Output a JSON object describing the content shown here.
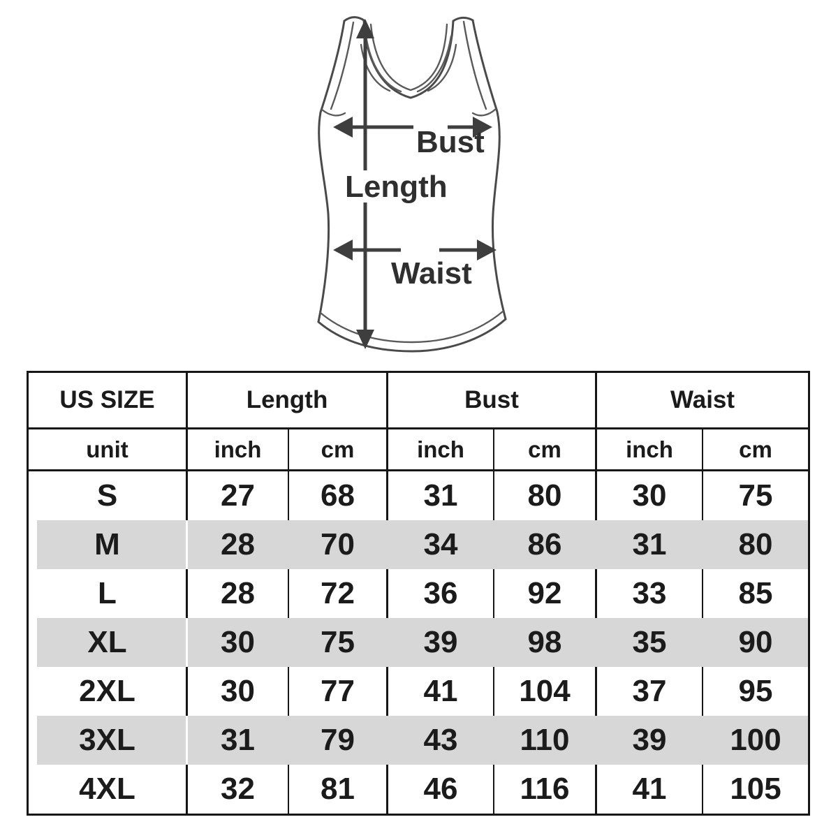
{
  "diagram": {
    "length_label": "Length",
    "bust_label": "Bust",
    "waist_label": "Waist"
  },
  "table": {
    "size_header": "US SIZE",
    "unit_label": "unit",
    "groups": [
      "Length",
      "Bust",
      "Waist"
    ],
    "unit_headers": [
      "inch",
      "cm",
      "inch",
      "cm",
      "inch",
      "cm"
    ],
    "rows": [
      {
        "size": "S",
        "shaded": false,
        "values": [
          27,
          68,
          31,
          80,
          30,
          75
        ]
      },
      {
        "size": "M",
        "shaded": true,
        "values": [
          28,
          70,
          34,
          86,
          31,
          80
        ]
      },
      {
        "size": "L",
        "shaded": false,
        "values": [
          28,
          72,
          36,
          92,
          33,
          85
        ]
      },
      {
        "size": "XL",
        "shaded": true,
        "values": [
          30,
          75,
          39,
          98,
          35,
          90
        ]
      },
      {
        "size": "2XL",
        "shaded": false,
        "values": [
          30,
          77,
          41,
          104,
          37,
          95
        ]
      },
      {
        "size": "3XL",
        "shaded": true,
        "values": [
          31,
          79,
          43,
          110,
          39,
          100
        ]
      },
      {
        "size": "4XL",
        "shaded": false,
        "values": [
          32,
          81,
          46,
          116,
          41,
          105
        ]
      }
    ],
    "colors": {
      "shaded_row": "#d7d7d7",
      "border": "#161616",
      "text": "#1b1b1b"
    }
  },
  "chart_data": {
    "type": "table",
    "columns": [
      "US SIZE",
      "Length inch",
      "Length cm",
      "Bust inch",
      "Bust cm",
      "Waist inch",
      "Waist cm"
    ],
    "rows": [
      [
        "S",
        27,
        68,
        31,
        80,
        30,
        75
      ],
      [
        "M",
        28,
        70,
        34,
        86,
        31,
        80
      ],
      [
        "L",
        28,
        72,
        36,
        92,
        33,
        85
      ],
      [
        "XL",
        30,
        75,
        39,
        98,
        35,
        90
      ],
      [
        "2XL",
        30,
        77,
        41,
        104,
        37,
        95
      ],
      [
        "3XL",
        31,
        79,
        43,
        110,
        39,
        100
      ],
      [
        "4XL",
        32,
        81,
        46,
        116,
        41,
        105
      ]
    ],
    "legend": "Rows M, XL, 3XL have light-gray banding",
    "layout": "measurement diagram of tank top above table with Length, Bust, Waist arrows"
  }
}
